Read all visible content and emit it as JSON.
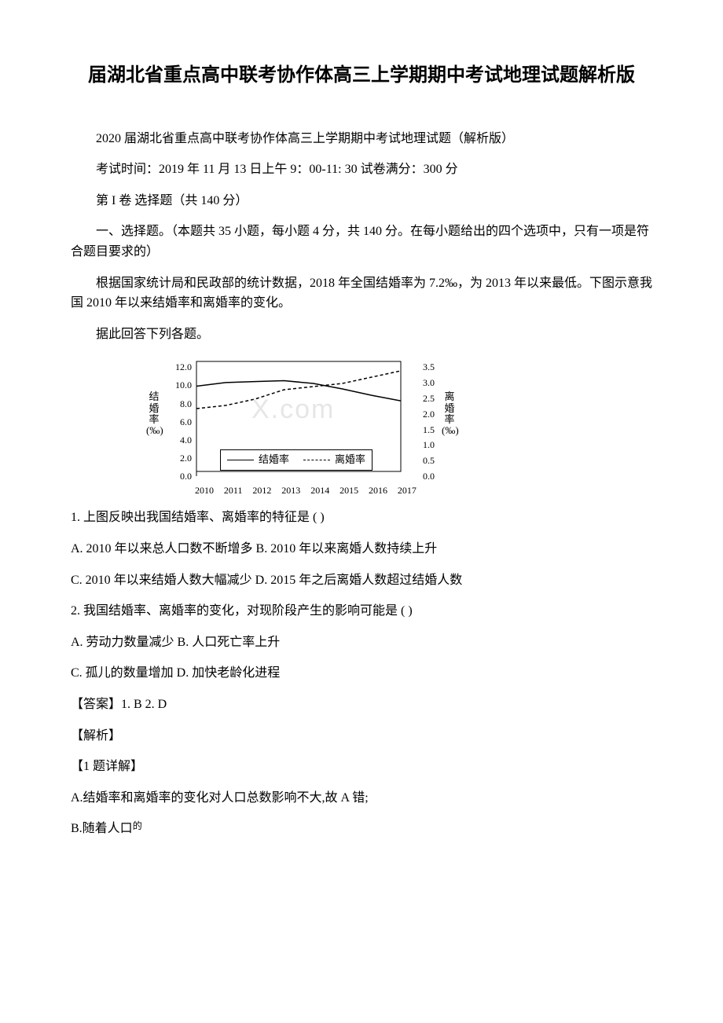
{
  "title": "届湖北省重点高中联考协作体高三上学期期中考试地理试题解析版",
  "intro": "2020 届湖北省重点高中联考协作体高三上学期期中考试地理试题（解析版）",
  "exam_time": "考试时间：2019 年 11 月 13 日上午 9：00-11: 30 试卷满分：300 分",
  "section1": "第 I 卷 选择题（共 140 分）",
  "section1_desc": "一、选择题。（本题共 35 小题，每小题 4 分，共 140 分。在每小题给出的四个选项中，只有一项是符合题目要求的）",
  "context": "根据国家统计局和民政部的统计数据，2018 年全国结婚率为 7.2‰，为 2013 年以来最低。下图示意我国 2010 年以来结婚率和离婚率的变化。",
  "prompt": "据此回答下列各题。",
  "chart": {
    "type": "line-dual-axis",
    "x_years": [
      "2010",
      "2011",
      "2012",
      "2013",
      "2014",
      "2015",
      "2016",
      "2017"
    ],
    "left_axis_label": "结婚率(‰)",
    "right_axis_label": "离婚率(‰)",
    "left_ticks": [
      "12.0",
      "10.0",
      "8.0",
      "6.0",
      "4.0",
      "2.0",
      "0.0"
    ],
    "right_ticks": [
      "3.5",
      "3.0",
      "2.5",
      "2.0",
      "1.5",
      "1.0",
      "0.5",
      "0.0"
    ],
    "series": {
      "marriage": {
        "label": "结婚率",
        "style": "solid",
        "values": [
          9.3,
          9.7,
          9.8,
          9.9,
          9.6,
          9.0,
          8.3,
          7.7
        ],
        "color": "#000000"
      },
      "divorce": {
        "label": "离婚率",
        "style": "dashed",
        "values": [
          2.0,
          2.1,
          2.3,
          2.6,
          2.7,
          2.8,
          3.0,
          3.2
        ],
        "color": "#000000"
      }
    },
    "legend_labels": [
      "结婚率",
      "离婚率"
    ],
    "watermark": "X.com",
    "line_width": 1.5,
    "background_color": "#ffffff",
    "border_color": "#000000"
  },
  "q1": "1. 上图反映出我国结婚率、离婚率的特征是 ( )",
  "q1_opts": "A. 2010 年以来总人口数不断增多 B. 2010 年以来离婚人数持续上升",
  "q1_opts2": "C. 2010 年以来结婚人数大幅减少 D. 2015 年之后离婚人数超过结婚人数",
  "q2": "2. 我国结婚率、离婚率的变化，对现阶段产生的影响可能是 ( )",
  "q2_opts": "A. 劳动力数量减少 B. 人口死亡率上升",
  "q2_opts2": "C. 孤儿的数量增加 D. 加快老龄化进程",
  "answer": "【答案】1. B 2. D",
  "analysis": "【解析】",
  "a1_head": "【1 题详解】",
  "a1_a": "A.结婚率和离婚率的变化对人口总数影响不大,故 A 错;",
  "a1_b_prefix": "B.随着人口",
  "a1_b_suffix": "的"
}
